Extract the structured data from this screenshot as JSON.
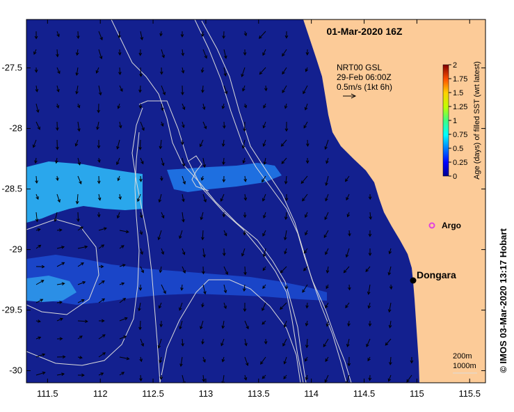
{
  "map": {
    "title": "01-Mar-2020 16Z",
    "current_legend": {
      "line1": "NRT00 GSL",
      "line2": "29-Feb 06:00Z",
      "line3": "0.5m/s (1kt 6h)"
    },
    "places": [
      {
        "name": "Dongara",
        "lon": 114.93,
        "lat": -29.26
      },
      {
        "name": "Argo",
        "lon": 115.1,
        "lat": -28.82
      }
    ],
    "scale_labels": [
      "200m",
      "1000m"
    ],
    "credit": "© IMOS 03-Mar-2020 13:17 Hobart",
    "lon_ticks": [
      "111.5",
      "112",
      "112.5",
      "113",
      "113.5",
      "114",
      "114.5",
      "115",
      "115.5"
    ],
    "lat_ticks": [
      "-27.5",
      "-28",
      "-28.5",
      "-29",
      "-29.5",
      "-30"
    ],
    "lon_range": [
      111.3,
      115.65
    ],
    "lat_range": [
      -27.1,
      -30.1
    ]
  },
  "colorbar": {
    "title": "Age (days) of filled SST (wrt latest)",
    "ticks": [
      "2",
      "1.75",
      "1.5",
      "1.25",
      "1",
      "0.75",
      "0.5",
      "0.25",
      "0"
    ],
    "range": [
      0,
      2
    ]
  },
  "colors": {
    "ocean": "#13208f",
    "land": "#fccb98",
    "band_light": "#2aa7ec",
    "band_mid": "#1e6fe0",
    "contour": "#dcdcdc",
    "argo": "#e040e0"
  }
}
